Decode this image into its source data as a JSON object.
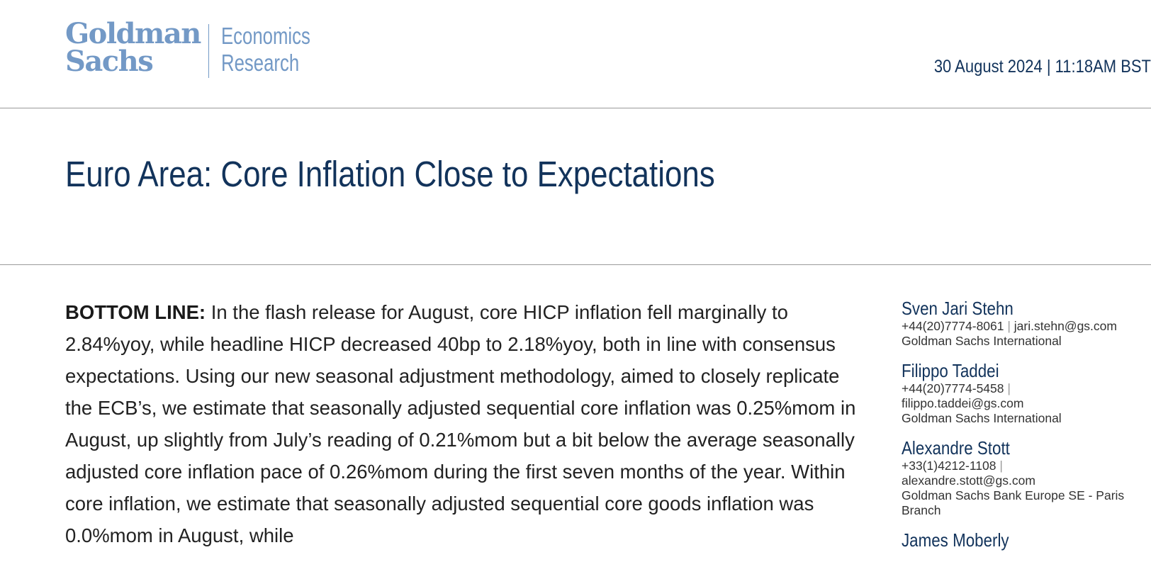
{
  "header": {
    "logo_line1": "Goldman",
    "logo_line2": "Sachs",
    "logo_sub1": "Economics",
    "logo_sub2": "Research",
    "date": "30 August 2024 | 11:18AM BST"
  },
  "title": "Euro Area: Core Inflation Close to Expectations",
  "body": {
    "lead": "BOTTOM LINE:",
    "text": "In the flash release for August, core HICP inflation fell marginally to 2.84%yoy, while headline HICP decreased 40bp to 2.18%yoy, both in line with consensus expectations. Using our new seasonal adjustment methodology, aimed to closely replicate the ECB’s, we estimate that seasonally adjusted sequential core inflation was 0.25%mom in August, up slightly from July’s reading of 0.21%mom but a bit below the average seasonally adjusted core inflation pace of 0.26%mom during the first seven months of the year. Within core inflation, we estimate that seasonally adjusted sequential core goods inflation was 0.0%mom in August, while"
  },
  "authors": [
    {
      "name": "Sven Jari Stehn",
      "phone": "+44(20)7774-8061",
      "separator": "|",
      "email": "jari.stehn@gs.com",
      "firm": "Goldman Sachs International"
    },
    {
      "name": "Filippo Taddei",
      "phone": "+44(20)7774-5458",
      "separator": "|",
      "email": "filippo.taddei@gs.com",
      "firm": "Goldman Sachs International"
    },
    {
      "name": "Alexandre Stott",
      "phone": "+33(1)4212-1108",
      "separator": "|",
      "email": "alexandre.stott@gs.com",
      "firm": "Goldman Sachs Bank Europe SE - Paris Branch"
    },
    {
      "name": "James Moberly"
    }
  ],
  "colors": {
    "brand_light": "#7399c6",
    "brand_dark": "#12335b",
    "rule": "#9a9a9a"
  }
}
